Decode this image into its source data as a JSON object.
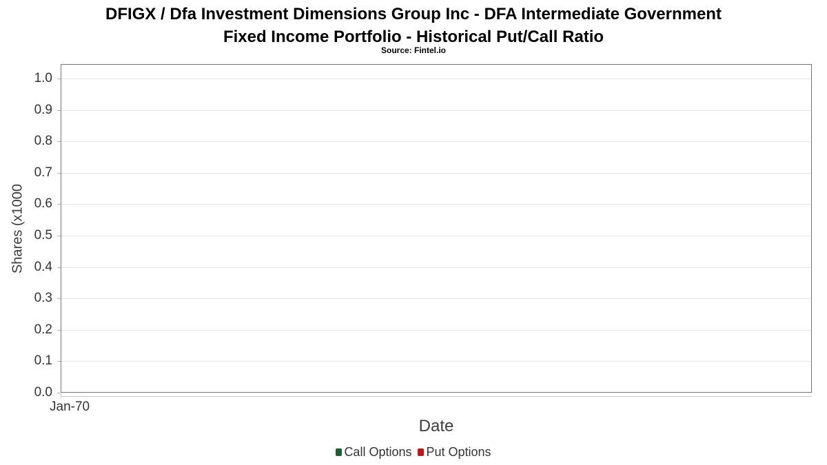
{
  "chart_data": {
    "type": "line",
    "title": "DFIGX / Dfa Investment Dimensions Group Inc - DFA Intermediate Government Fixed Income Portfolio - Historical Put/Call Ratio",
    "title_lines": [
      "DFIGX / Dfa Investment Dimensions Group Inc - DFA Intermediate Government",
      "Fixed Income Portfolio - Historical Put/Call Ratio"
    ],
    "subtitle": "Source: Fintel.io",
    "xlabel": "Date",
    "ylabel": "Shares (x1000",
    "x_axis": {
      "tick_labels": [
        "Jan-70"
      ]
    },
    "y_axis": {
      "tick_labels": [
        "0.0",
        "0.1",
        "0.2",
        "0.3",
        "0.4",
        "0.5",
        "0.6",
        "0.7",
        "0.8",
        "0.9",
        "1.0"
      ],
      "range": [
        0.0,
        1.05
      ]
    },
    "grid": "horizontal",
    "legend_position": "bottom-center",
    "series": [
      {
        "name": "Call Options",
        "color": "#1f5c31",
        "x": [],
        "values": []
      },
      {
        "name": "Put Options",
        "color": "#b21e1e",
        "x": [],
        "values": []
      }
    ]
  },
  "theme": {
    "plot_border_color": "#757575",
    "gridline_color": "#e6e6e6",
    "axis_line_color": "#c9c9c9",
    "tick_mark_color": "#b0b0b0",
    "tick_text_color": "#333333",
    "axis_label_color": "#3c3c3c",
    "title_color": "#000000",
    "background_color": "#ffffff"
  }
}
